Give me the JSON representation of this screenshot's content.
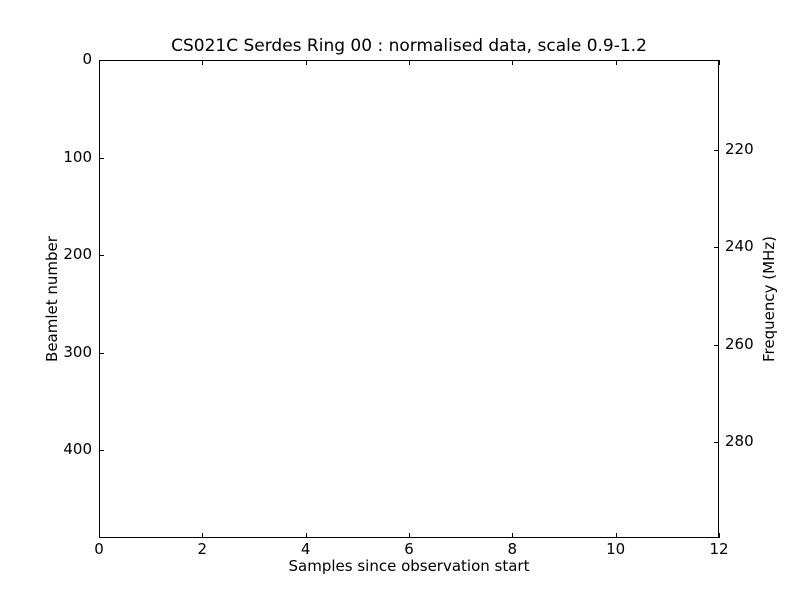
{
  "chart_data": {
    "type": "heatmap",
    "title": "CS021C Serdes Ring 00 : normalised data, scale 0.9-1.2",
    "xlabel": "Samples since observation start",
    "ylabel_left": "Beamlet number",
    "ylabel_right": "Frequency (MHz)",
    "x_ticks": [
      0,
      2,
      4,
      6,
      8,
      10,
      12
    ],
    "xlim": [
      0,
      12
    ],
    "y_left_ticks": [
      0,
      100,
      200,
      300,
      400
    ],
    "ylim_left": [
      0,
      490
    ],
    "y_left_inverted": true,
    "y_right_ticks": [
      220,
      240,
      260,
      280
    ],
    "ylim_right": [
      201.5,
      299.7
    ],
    "grid": false,
    "legend": false,
    "values": []
  },
  "colors": {
    "foreground": "#000000",
    "background": "#ffffff"
  }
}
